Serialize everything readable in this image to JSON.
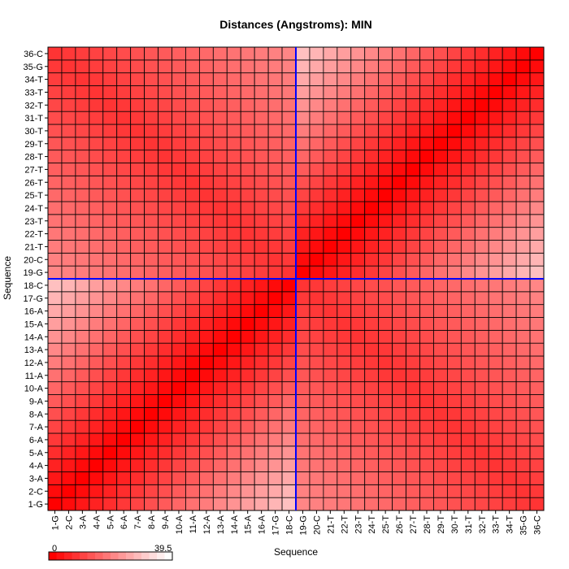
{
  "chart_data": {
    "type": "heatmap",
    "title": "Distances (Angstroms):  MIN",
    "xlabel": "Sequence",
    "ylabel": "Sequence",
    "labels": [
      "1-G",
      "2-C",
      "3-A",
      "4-A",
      "5-A",
      "6-A",
      "7-A",
      "8-A",
      "9-A",
      "10-A",
      "11-A",
      "12-A",
      "13-A",
      "14-A",
      "15-A",
      "16-A",
      "17-G",
      "18-C",
      "19-G",
      "20-C",
      "21-T",
      "22-T",
      "23-T",
      "24-T",
      "25-T",
      "26-T",
      "27-T",
      "28-T",
      "29-T",
      "30-T",
      "31-T",
      "32-T",
      "33-T",
      "34-T",
      "35-G",
      "36-C"
    ],
    "value_range": [
      0,
      39.5
    ],
    "legend": {
      "min_label": "0",
      "max_label": "39.5",
      "placement": "bottom-left"
    },
    "colors": {
      "low": "#ff0000",
      "high": "#ffffff",
      "grid": "#000000",
      "crosshair": "#0000ff"
    },
    "crosshair": {
      "x_between": [
        "18-C",
        "19-G"
      ],
      "y_between": [
        "18-C",
        "19-G"
      ]
    },
    "value_model": {
      "description": "symmetric distance matrix; 0 on diagonal, peaks ~39.5 at the anti-diagonal pairing across the 18/19 junction",
      "same_strand_rate": 1.75,
      "cross_strand_rate": 0.75,
      "cross_strand_base": 8
    }
  }
}
